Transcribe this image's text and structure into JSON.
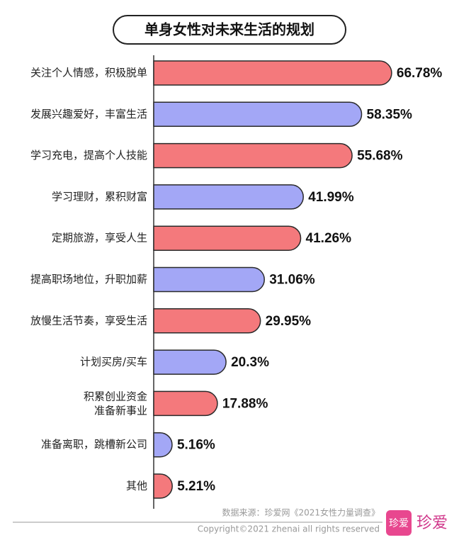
{
  "chart_data": {
    "type": "hbar",
    "title": "单身女性对未来生活的规划",
    "categories": [
      "关注个人情感，积极脱单",
      "发展兴趣爱好，丰富生活",
      "学习充电，提高个人技能",
      "学习理财，累积财富",
      "定期旅游，享受人生",
      "提高职场地位，升职加薪",
      "放慢生活节奏，享受生活",
      "计划买房/买车",
      [
        "积累创业资金",
        "准备新事业"
      ],
      "准备离职，跳槽新公司",
      "其他"
    ],
    "values": [
      66.78,
      58.35,
      55.68,
      41.99,
      41.26,
      31.06,
      29.95,
      20.3,
      17.88,
      5.16,
      5.21
    ],
    "value_labels": [
      "66.78%",
      "58.35%",
      "55.68%",
      "41.99%",
      "41.26%",
      "31.06%",
      "29.95%",
      "20.3%",
      "17.88%",
      "5.16%",
      "5.21%"
    ],
    "colors": [
      "#f4797c",
      "#a3a7f6",
      "#f4797c",
      "#a3a7f6",
      "#f4797c",
      "#a3a7f6",
      "#f4797c",
      "#a3a7f6",
      "#f4797c",
      "#a3a7f6",
      "#f4797c"
    ],
    "source": "数据来源：珍爱网《2021女性力量调查》",
    "copyright": "Copyright©2021  zhenai  all rights reserved",
    "logo_icon": "珍爱",
    "logo_text": "珍爱"
  }
}
